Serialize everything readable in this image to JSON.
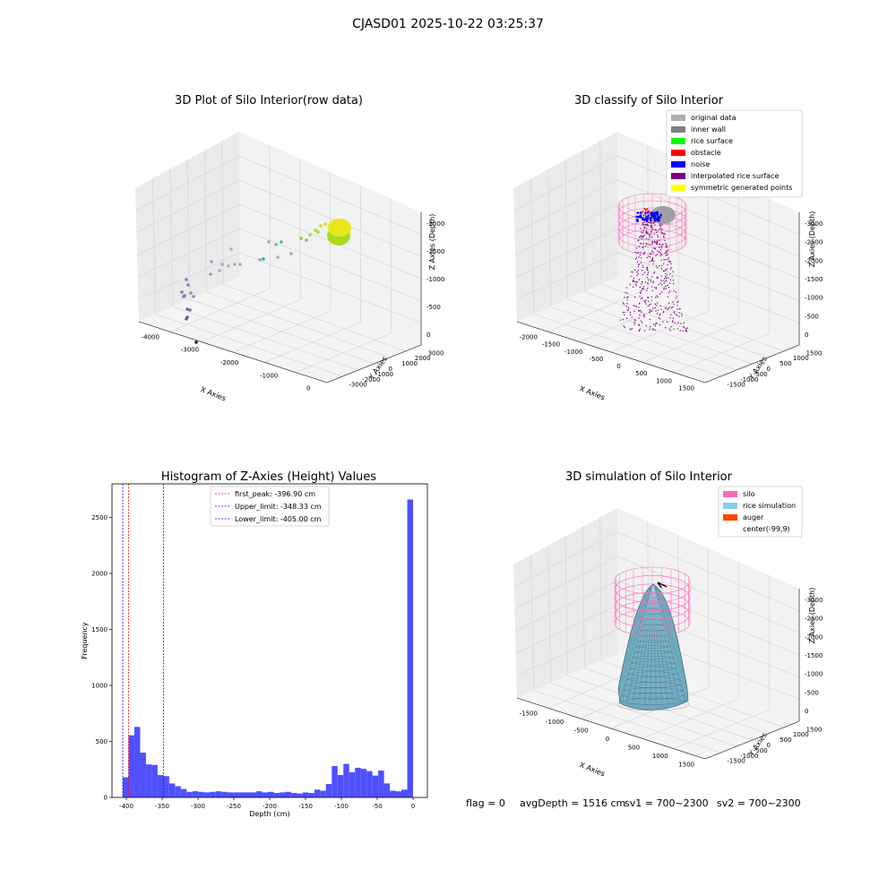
{
  "figure": {
    "suptitle": "CJASD01 2025-10-22 03:25:37",
    "status": {
      "flag": "flag = 0",
      "avg": "avgDepth = 1516 cm",
      "sv1": "sv1 = 700~2300",
      "sv2": "sv2 = 700~2300"
    }
  },
  "colors": {
    "histogram_bar": "#5050ff",
    "peak_line": "#ff0000",
    "limit_line": "#0000ff",
    "silo": "#ff69b4",
    "rice_sim": "#87ceeb",
    "auger": "#ff4500",
    "original_data": "#b0b0b0",
    "inner_wall": "#808080",
    "rice_surface": "#00ff00",
    "obstacle": "#ff0000",
    "noise": "#0000ff",
    "interpolated": "#800080",
    "symmetric": "#ffff00",
    "pane": "#f0f0f0",
    "grid": "#d6d6d6"
  },
  "chart_data": [
    {
      "type": "scatter",
      "title": "3D Plot of Silo Interior(row data)",
      "xlabel": "X Axies",
      "ylabel": "Y Axies",
      "zlabel": "Z Axies (Depth)",
      "xticks": [
        "-4000",
        "-3000",
        "-2000",
        "-1000",
        "0"
      ],
      "yticks": [
        "-3000",
        "-2000",
        "-1000",
        "0",
        "1000",
        "2000",
        "3000"
      ],
      "zticks": [
        "0",
        "-500",
        "-1000",
        "-1500",
        "-2000"
      ],
      "xlim": [
        -4200,
        500
      ],
      "ylim": [
        -3000,
        3500
      ],
      "zlim": [
        -2200,
        0
      ],
      "colormap": "viridis by depth"
    },
    {
      "type": "scatter",
      "title": "3D classify of Silo Interior",
      "xlabel": "X Axies",
      "ylabel": "Y Axies",
      "zlabel": "Z Axies (Depth)",
      "xticks": [
        "-2000",
        "-1500",
        "-1000",
        "-500",
        "0",
        "500",
        "1000",
        "1500"
      ],
      "yticks": [
        "-1500",
        "-1000",
        "-500",
        "0",
        "500",
        "1000",
        "1500"
      ],
      "zticks": [
        "0",
        "-500",
        "-1000",
        "-1500",
        "-2000",
        "-2500",
        "-3000"
      ],
      "xlim": [
        -2000,
        1700
      ],
      "ylim": [
        -1700,
        1700
      ],
      "zlim": [
        -3300,
        0
      ],
      "legend": [
        "original data",
        "inner wall",
        "rice surface",
        "obstacle",
        "noise",
        "interpolated rice surface",
        "symmetric generated points"
      ],
      "legend_position": "top-right"
    },
    {
      "type": "bar",
      "title": "Histogram of Z-Axies (Height) Values",
      "xlabel": "Depth (cm)",
      "ylabel": "Frequency",
      "xlim": [
        -420,
        20
      ],
      "ylim": [
        0,
        2800
      ],
      "xticks": [
        -400,
        -350,
        -300,
        -250,
        -200,
        -150,
        -100,
        -50,
        0
      ],
      "yticks": [
        0,
        500,
        1000,
        1500,
        2000,
        2500
      ],
      "bin_start": -405,
      "bin_width": 8.1,
      "values": [
        180,
        555,
        630,
        400,
        295,
        290,
        200,
        190,
        125,
        100,
        75,
        50,
        55,
        50,
        45,
        50,
        55,
        50,
        45,
        45,
        45,
        45,
        45,
        55,
        45,
        50,
        40,
        45,
        50,
        40,
        35,
        45,
        40,
        70,
        60,
        120,
        280,
        200,
        300,
        225,
        265,
        255,
        235,
        195,
        240,
        125,
        60,
        55,
        70,
        2660
      ],
      "vlines": [
        {
          "label": "first_peak: -396.90 cm",
          "x": -396.9,
          "color": "#ff0000"
        },
        {
          "label": "Upper_limit: -348.33 cm",
          "x": -348.33,
          "color": "#0000ff"
        },
        {
          "label": "Lower_limit: -405.00 cm",
          "x": -405.0,
          "color": "#0000ff"
        }
      ],
      "legend_position": "top-center",
      "grid": false
    },
    {
      "type": "area",
      "title": "3D simulation of Silo Interior",
      "xlabel": "X Axies",
      "ylabel": "Y Axies",
      "zlabel": "Z Axies (Depth)",
      "xticks": [
        "-1500",
        "-1000",
        "-500",
        "0",
        "500",
        "1000",
        "1500"
      ],
      "yticks": [
        "-1500",
        "-1000",
        "-500",
        "0",
        "500",
        "1000",
        "1500"
      ],
      "zticks": [
        "0",
        "-500",
        "-1000",
        "-1500",
        "-2000",
        "-2500",
        "-3000"
      ],
      "xlim": [
        -1700,
        1700
      ],
      "ylim": [
        -1700,
        1700
      ],
      "zlim": [
        -3200,
        0
      ],
      "legend": [
        "silo",
        "rice simulation",
        "auger",
        "center(-99,9)"
      ],
      "legend_position": "top-right"
    }
  ]
}
